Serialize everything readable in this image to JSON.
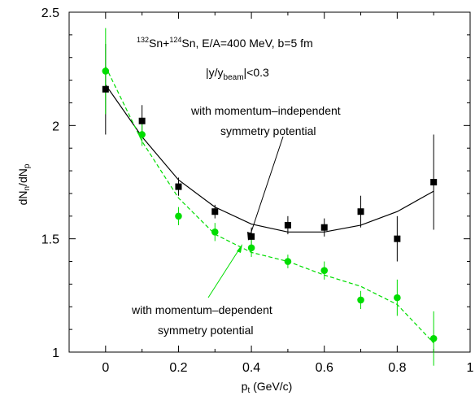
{
  "chart_data": {
    "type": "scatter",
    "xlabel": "p",
    "xlabel_sub": "t",
    "xlabel_unit": " (GeV/c)",
    "ylabel": "dN",
    "ylabel_sub1": "n",
    "ylabel_mid": "/dN",
    "ylabel_sub2": "p",
    "xlim": [
      -0.1,
      1.0
    ],
    "ylim": [
      1.0,
      2.5
    ],
    "xticks": [
      0,
      0.2,
      0.4,
      0.6,
      0.8,
      1
    ],
    "xtick_labels": [
      "0",
      "0.2",
      "0.4",
      "0.6",
      "0.8",
      "1"
    ],
    "yticks": [
      1,
      1.5,
      2,
      2.5
    ],
    "ytick_labels": [
      "1",
      "1.5",
      "2",
      "2.5"
    ],
    "grid": false,
    "header": {
      "sup1": "132",
      "nuc1": "Sn+",
      "sup2": "124",
      "nuc2": "Sn, E/A=400 MeV, b=5 fm"
    },
    "cut": {
      "pre": "|y/y",
      "sub": "beam",
      "post": "|<0.3"
    },
    "annotations": [
      {
        "key": "indep",
        "lines": [
          "with momentum–independent",
          "symmetry potential"
        ]
      },
      {
        "key": "dep",
        "lines": [
          "with momentum–dependent",
          "symmetry potential"
        ]
      }
    ],
    "series": [
      {
        "key": "independent",
        "marker": "square",
        "color": "#000000",
        "line_style": "solid",
        "x": [
          0,
          0.1,
          0.2,
          0.3,
          0.4,
          0.5,
          0.6,
          0.7,
          0.8,
          0.9
        ],
        "y": [
          2.16,
          2.02,
          1.73,
          1.62,
          1.51,
          1.56,
          1.55,
          1.62,
          1.5,
          1.75
        ],
        "err": [
          0.2,
          0.07,
          0.04,
          0.03,
          0.04,
          0.04,
          0.04,
          0.07,
          0.1,
          0.21
        ],
        "curve_x": [
          0,
          0.1,
          0.2,
          0.3,
          0.4,
          0.5,
          0.6,
          0.7,
          0.8,
          0.9
        ],
        "curve_y": [
          2.18,
          1.95,
          1.76,
          1.64,
          1.565,
          1.53,
          1.53,
          1.56,
          1.62,
          1.71
        ]
      },
      {
        "key": "dependent",
        "marker": "circle",
        "color": "#00dd00",
        "line_style": "dashed",
        "x": [
          0,
          0.1,
          0.2,
          0.3,
          0.4,
          0.5,
          0.6,
          0.7,
          0.8,
          0.9
        ],
        "y": [
          2.24,
          1.96,
          1.6,
          1.53,
          1.46,
          1.4,
          1.36,
          1.23,
          1.24,
          1.06
        ],
        "err": [
          0.19,
          0.05,
          0.04,
          0.04,
          0.04,
          0.03,
          0.04,
          0.04,
          0.08,
          0.12
        ],
        "curve_x": [
          0,
          0.1,
          0.2,
          0.3,
          0.4,
          0.5,
          0.6,
          0.7,
          0.8,
          0.9
        ],
        "curve_y": [
          2.26,
          1.93,
          1.68,
          1.52,
          1.44,
          1.4,
          1.34,
          1.29,
          1.21,
          1.04
        ]
      }
    ]
  }
}
